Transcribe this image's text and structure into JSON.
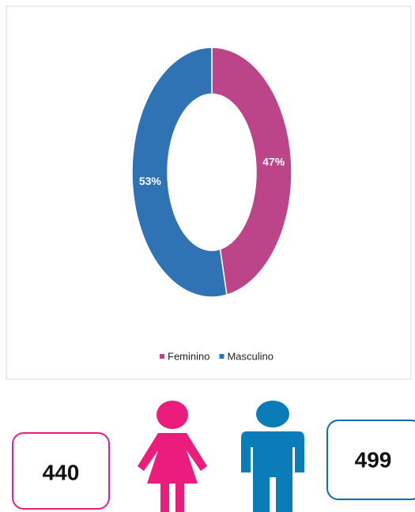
{
  "chart_data": {
    "type": "pie",
    "categories": [
      "Feminino",
      "Masculino"
    ],
    "values": [
      47,
      53
    ],
    "value_labels": [
      "47%",
      "53%"
    ],
    "colors": [
      "#bc4489",
      "#2f73b5"
    ],
    "legend": "bottom"
  },
  "cards": [
    {
      "value": 440,
      "color": "#ec1c7c"
    },
    {
      "value": 499,
      "color": "#0a7db8"
    }
  ]
}
